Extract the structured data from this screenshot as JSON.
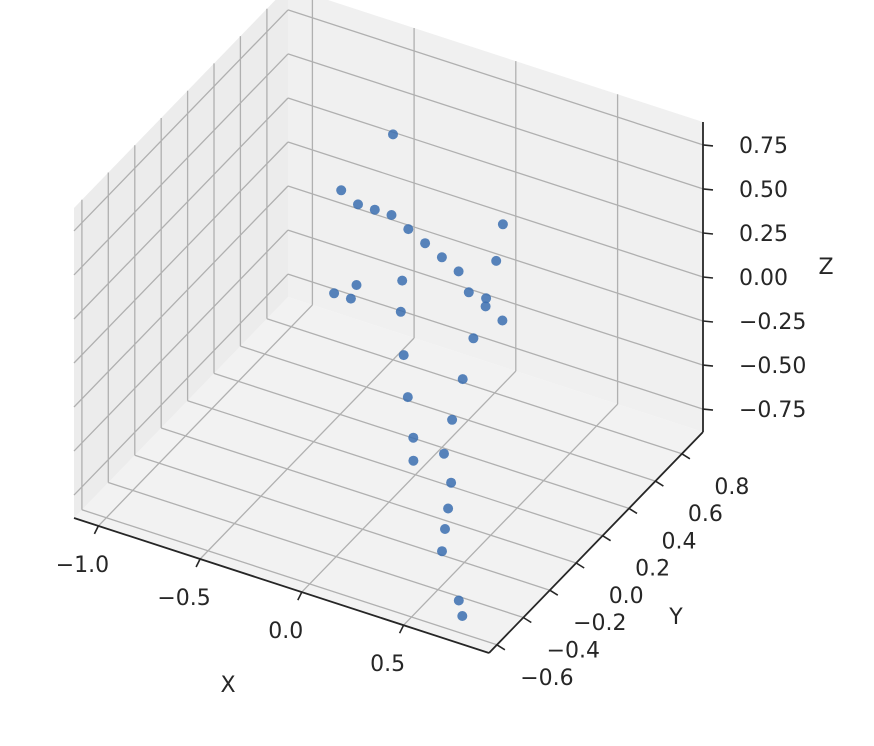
{
  "chart_data": {
    "type": "scatter",
    "title": "",
    "series": [
      {
        "points": [
          [
            0.1,
            -0.4,
            0.7
          ],
          [
            -0.3,
            0.1,
            0.7
          ],
          [
            -0.25,
            0.15,
            0.6
          ],
          [
            -0.2,
            0.2,
            0.55
          ],
          [
            -0.15,
            0.25,
            0.5
          ],
          [
            -0.1,
            0.3,
            0.4
          ],
          [
            -0.05,
            0.35,
            0.3
          ],
          [
            0.0,
            0.4,
            0.2
          ],
          [
            0.05,
            0.45,
            0.1
          ],
          [
            0.1,
            0.45,
            0.0
          ],
          [
            0.15,
            0.5,
            -0.1
          ],
          [
            0.2,
            0.55,
            -0.2
          ],
          [
            0.0,
            0.1,
            0.3
          ],
          [
            -0.02,
            0.12,
            0.1
          ],
          [
            0.02,
            0.08,
            -0.1
          ],
          [
            0.06,
            0.05,
            -0.3
          ],
          [
            0.1,
            0.03,
            -0.5
          ],
          [
            0.12,
            0.0,
            -0.6
          ],
          [
            0.3,
            0.4,
            0.5
          ],
          [
            0.28,
            0.38,
            0.3
          ],
          [
            0.25,
            0.35,
            0.1
          ],
          [
            0.22,
            0.3,
            -0.1
          ],
          [
            0.2,
            0.25,
            -0.3
          ],
          [
            0.18,
            0.2,
            -0.5
          ],
          [
            -0.5,
            0.8,
            0.4
          ],
          [
            0.4,
            -0.2,
            -0.3
          ],
          [
            0.5,
            -0.3,
            -0.35
          ],
          [
            0.55,
            -0.4,
            -0.4
          ],
          [
            0.6,
            -0.5,
            -0.42
          ],
          [
            0.65,
            -0.6,
            -0.45
          ],
          [
            -0.4,
            0.2,
            0.0
          ],
          [
            -0.35,
            0.25,
            -0.05
          ],
          [
            0.7,
            -0.55,
            -0.75
          ],
          [
            0.75,
            -0.6,
            -0.78
          ]
        ]
      }
    ],
    "xlabel": "X",
    "ylabel": "Y",
    "zlabel": "Z",
    "xticks": [
      "−1.0",
      "−0.5",
      "0.0",
      "0.5"
    ],
    "yticks": [
      "−0.6",
      "−0.4",
      "−0.2",
      "0.0",
      "0.2",
      "0.4",
      "0.6",
      "0.8"
    ],
    "zticks": [
      "−0.75",
      "−0.50",
      "−0.25",
      "0.00",
      "0.25",
      "0.50",
      "0.75"
    ],
    "colors": {
      "marker": "#3b6fb0",
      "pane": "#f2f2f2",
      "grid": "#b0b0b0",
      "axis": "#262626"
    }
  }
}
